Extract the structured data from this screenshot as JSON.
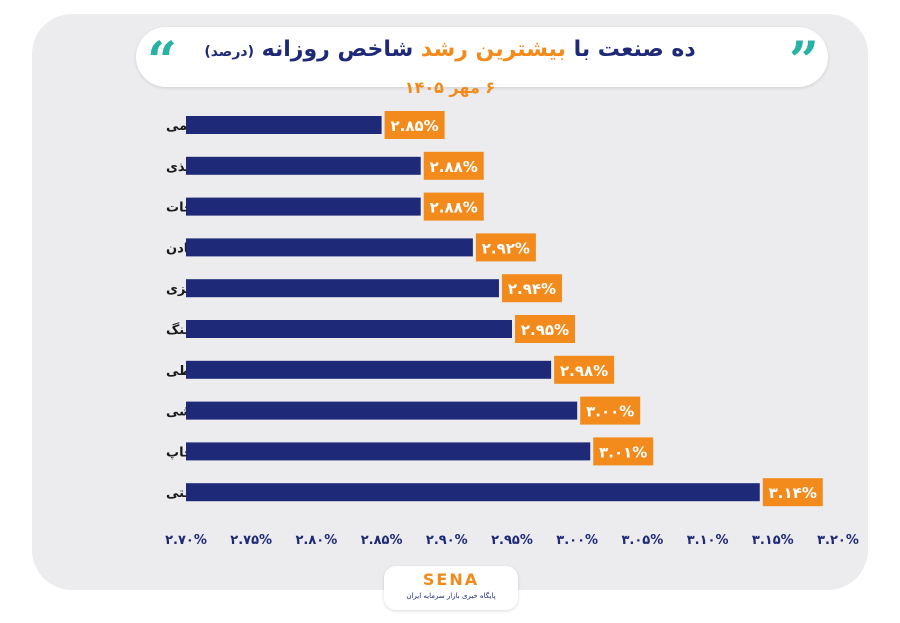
{
  "header": {
    "title_part1": "ده صنعت با",
    "title_part2": "بیشترین رشد",
    "title_part3": "شاخص روزانه",
    "title_part4": "(درصد)",
    "subtitle": "۶ مهر ۱۴۰۵",
    "quote_open": "“",
    "quote_close": "”"
  },
  "footer": {
    "logo_text": "SENA",
    "tagline": "پایگاه خبری بازار سرمایه ایران"
  },
  "colors": {
    "bar": "#1e2a78",
    "label_bg": "#f28a1c",
    "label_text": "#ffffff",
    "axis_text": "#1e2a78",
    "card_bg": "#ececee"
  },
  "chart_data": {
    "type": "bar",
    "orientation": "horizontal",
    "categories": [
      "محصولات چرمی",
      "محصولات کاغذی",
      "منسوجات",
      "سایر معادن",
      "استخراج کانه فلزی",
      "زغال سنگ",
      "وسایل ارتباطی",
      "خرده فروشی",
      "انتشار و چاپ",
      "فرآورده‌های نفتی"
    ],
    "values": [
      2.85,
      2.88,
      2.88,
      2.92,
      2.94,
      2.95,
      2.98,
      3.0,
      3.01,
      3.14
    ],
    "value_labels": [
      "۲.۸۵%",
      "۲.۸۸%",
      "۲.۸۸%",
      "۲.۹۲%",
      "۲.۹۴%",
      "۲.۹۵%",
      "۲.۹۸%",
      "۳.۰۰%",
      "۳.۰۱%",
      "۳.۱۴%"
    ],
    "xlim": [
      2.7,
      3.2
    ],
    "ticks": [
      2.7,
      2.75,
      2.8,
      2.85,
      2.9,
      2.95,
      3.0,
      3.05,
      3.1,
      3.15,
      3.2
    ],
    "tick_labels": [
      "۲.۷۰%",
      "۲.۷۵%",
      "۲.۸۰%",
      "۲.۸۵%",
      "۲.۹۰%",
      "۲.۹۵%",
      "۳.۰۰%",
      "۳.۰۵%",
      "۳.۱۰%",
      "۳.۱۵%",
      "۳.۲۰%"
    ],
    "grid": false,
    "legend": "none"
  }
}
